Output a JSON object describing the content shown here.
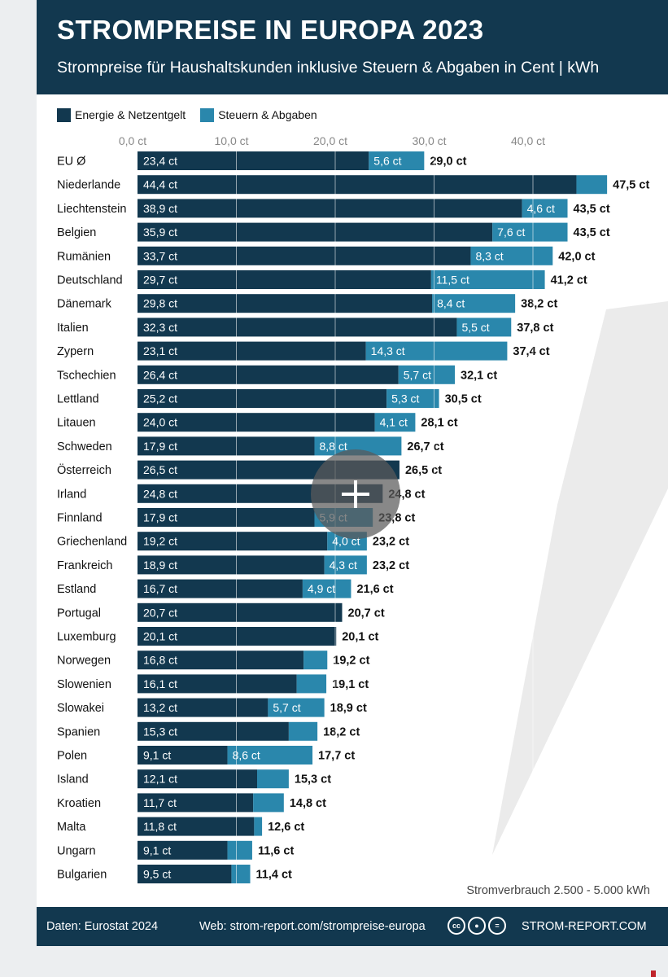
{
  "header": {
    "title": "STROMPREISE IN EUROPA 2023",
    "subtitle": "Strompreise für Haushaltskunden inklusive Steuern & Abgaben in Cent | kWh"
  },
  "legend": {
    "energy_label": "Energie & Netzentgelt",
    "taxes_label": "Steuern & Abgaben"
  },
  "colors": {
    "header_bg": "#12384f",
    "energy": "#12384f",
    "taxes": "#2a87ac",
    "watermark": "#ebebeb"
  },
  "note": "Stromverbrauch 2.500 - 5.000 kWh",
  "footer": {
    "source": "Daten: Eurostat 2024",
    "web": "Web: strom-report.com/strompreise-europa",
    "brand": "STROM-REPORT.COM",
    "icons": [
      "cc-icon",
      "person-icon",
      "equals-icon"
    ]
  },
  "chart_data": {
    "type": "bar",
    "orientation": "horizontal",
    "stacked": true,
    "unit": "ct",
    "xlim": [
      0,
      50
    ],
    "xticks": [
      "0,0 ct",
      "10,0 ct",
      "20,0 ct",
      "30,0 ct",
      "40,0 ct"
    ],
    "xtick_values": [
      0,
      10,
      20,
      30,
      40
    ],
    "grid": true,
    "legend_position": "top-left",
    "categories": [
      "EU Ø",
      "Niederlande",
      "Liechtenstein",
      "Belgien",
      "Rumänien",
      "Deutschland",
      "Dänemark",
      "Italien",
      "Zypern",
      "Tschechien",
      "Lettland",
      "Litauen",
      "Schweden",
      "Österreich",
      "Irland",
      "Finnland",
      "Griechenland",
      "Frankreich",
      "Estland",
      "Portugal",
      "Luxemburg",
      "Norwegen",
      "Slowenien",
      "Slowakei",
      "Spanien",
      "Polen",
      "Island",
      "Kroatien",
      "Malta",
      "Ungarn",
      "Bulgarien"
    ],
    "series": [
      {
        "name": "Energie & Netzentgelt",
        "values": [
          23.4,
          44.4,
          38.9,
          35.9,
          33.7,
          29.7,
          29.8,
          32.3,
          23.1,
          26.4,
          25.2,
          24.0,
          17.9,
          26.5,
          24.8,
          17.9,
          19.2,
          18.9,
          16.7,
          20.7,
          20.1,
          16.8,
          16.1,
          13.2,
          15.3,
          9.1,
          12.1,
          11.7,
          11.8,
          9.1,
          9.5
        ],
        "labels": [
          "23,4 ct",
          "44,4 ct",
          "38,9 ct",
          "35,9 ct",
          "33,7 ct",
          "29,7 ct",
          "29,8 ct",
          "32,3 ct",
          "23,1 ct",
          "26,4 ct",
          "25,2 ct",
          "24,0 ct",
          "17,9 ct",
          "26,5 ct",
          "24,8 ct",
          "17,9 ct",
          "19,2 ct",
          "18,9 ct",
          "16,7 ct",
          "20,7 ct",
          "20,1 ct",
          "16,8 ct",
          "16,1 ct",
          "13,2 ct",
          "15,3 ct",
          "9,1 ct",
          "12,1 ct",
          "11,7 ct",
          "11,8 ct",
          "9,1 ct",
          "9,5 ct"
        ]
      },
      {
        "name": "Steuern & Abgaben",
        "values": [
          5.6,
          3.1,
          4.6,
          7.6,
          8.3,
          11.5,
          8.4,
          5.5,
          14.3,
          5.7,
          5.3,
          4.1,
          8.8,
          0.0,
          0.0,
          5.9,
          4.0,
          4.3,
          4.9,
          0.0,
          0.0,
          2.4,
          3.0,
          5.7,
          2.9,
          8.6,
          3.2,
          3.1,
          0.8,
          2.5,
          1.9
        ],
        "labels": [
          "5,6 ct",
          "",
          "4,6 ct",
          "7,6 ct",
          "8,3 ct",
          "11,5 ct",
          "8,4 ct",
          "5,5 ct",
          "14,3 ct",
          "5,7 ct",
          "5,3 ct",
          "4,1 ct",
          "8,8 ct",
          "",
          "",
          "5,9 ct",
          "4,0 ct",
          "4,3 ct",
          "4,9 ct",
          "",
          "",
          "",
          "",
          "5,7 ct",
          "",
          "8,6 ct",
          "",
          "",
          "",
          "",
          ""
        ]
      }
    ],
    "totals": [
      "29,0 ct",
      "47,5 ct",
      "43,5 ct",
      "43,5 ct",
      "42,0 ct",
      "41,2 ct",
      "38,2 ct",
      "37,8 ct",
      "37,4 ct",
      "32,1 ct",
      "30,5 ct",
      "28,1 ct",
      "26,7 ct",
      "26,5 ct",
      "24,8 ct",
      "23,8 ct",
      "23,2 ct",
      "23,2 ct",
      "21,6 ct",
      "20,7 ct",
      "20,1 ct",
      "19,2 ct",
      "19,1 ct",
      "18,9 ct",
      "18,2 ct",
      "17,7 ct",
      "15,3 ct",
      "14,8 ct",
      "12,6 ct",
      "11,6 ct",
      "11,4 ct"
    ]
  }
}
